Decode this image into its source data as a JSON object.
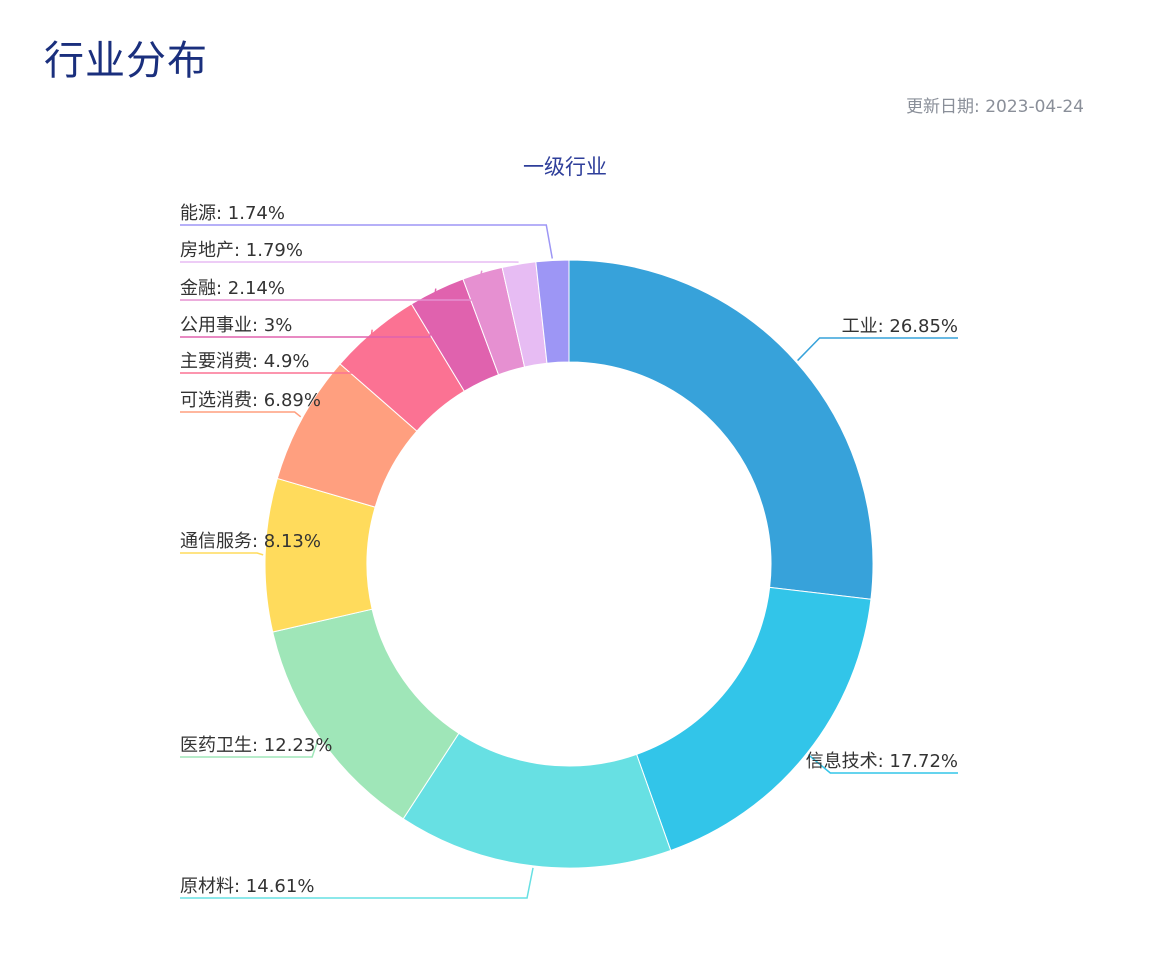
{
  "page": {
    "title": "行业分布",
    "update_date": "更新日期: 2023-04-24"
  },
  "chart_data": {
    "type": "pie",
    "title": "一级行业",
    "donut": true,
    "legend": "none",
    "series": [
      {
        "name": "工业",
        "value": 26.85,
        "label": "26.85%",
        "color": "#37a2da"
      },
      {
        "name": "信息技术",
        "value": 17.72,
        "label": "17.72%",
        "color": "#32c5e9"
      },
      {
        "name": "原材料",
        "value": 14.61,
        "label": "14.61%",
        "color": "#67e0e3"
      },
      {
        "name": "医药卫生",
        "value": 12.23,
        "label": "12.23%",
        "color": "#9fe6b8"
      },
      {
        "name": "通信服务",
        "value": 8.13,
        "label": "8.13%",
        "color": "#ffdb5c"
      },
      {
        "name": "可选消费",
        "value": 6.89,
        "label": "6.89%",
        "color": "#ff9f7f"
      },
      {
        "name": "主要消费",
        "value": 4.9,
        "label": "4.9%",
        "color": "#fb7293"
      },
      {
        "name": "公用事业",
        "value": 3,
        "label": "3%",
        "color": "#e062ae"
      },
      {
        "name": "金融",
        "value": 2.14,
        "label": "2.14%",
        "color": "#e690d1"
      },
      {
        "name": "房地产",
        "value": 1.79,
        "label": "1.79%",
        "color": "#e7bcf3"
      },
      {
        "name": "能源",
        "value": 1.74,
        "label": "1.74%",
        "color": "#9d96f5"
      }
    ]
  }
}
